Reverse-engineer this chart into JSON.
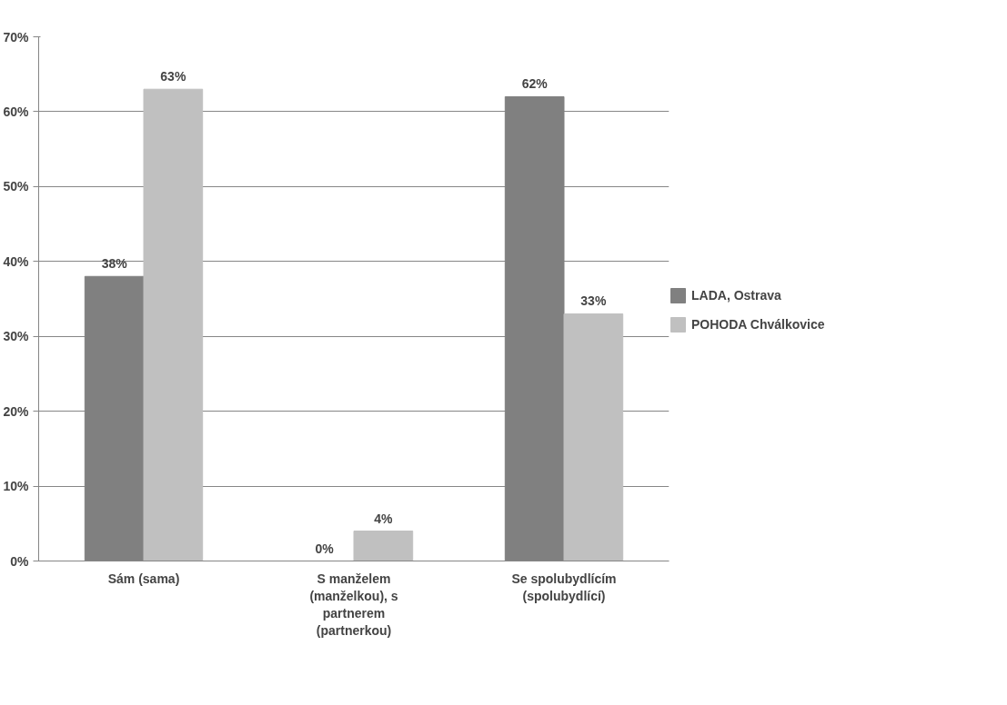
{
  "chart_data": {
    "type": "bar",
    "categories": [
      "Sám (sama)",
      "S manželem (manželkou), s partnerem (partnerkou)",
      "Se spolubydlícím (spolubydlící)"
    ],
    "series": [
      {
        "name": "LADA, Ostrava",
        "color": "#808080",
        "values": [
          38,
          0,
          62
        ],
        "value_labels": [
          "38%",
          "0%",
          "62%"
        ]
      },
      {
        "name": "POHODA Chválkovice",
        "color": "#c0c0c0",
        "values": [
          63,
          4,
          33
        ],
        "value_labels": [
          "63%",
          "4%",
          "33%"
        ]
      }
    ],
    "ylim": [
      0,
      70
    ],
    "yticks": [
      {
        "value": 0,
        "label": "0%"
      },
      {
        "value": 10,
        "label": "10%"
      },
      {
        "value": 20,
        "label": "20%"
      },
      {
        "value": 30,
        "label": "30%"
      },
      {
        "value": 40,
        "label": "40%"
      },
      {
        "value": 50,
        "label": "50%"
      },
      {
        "value": 60,
        "label": "60%"
      },
      {
        "value": 70,
        "label": "70%"
      }
    ],
    "grid": "y",
    "legend": "right"
  }
}
